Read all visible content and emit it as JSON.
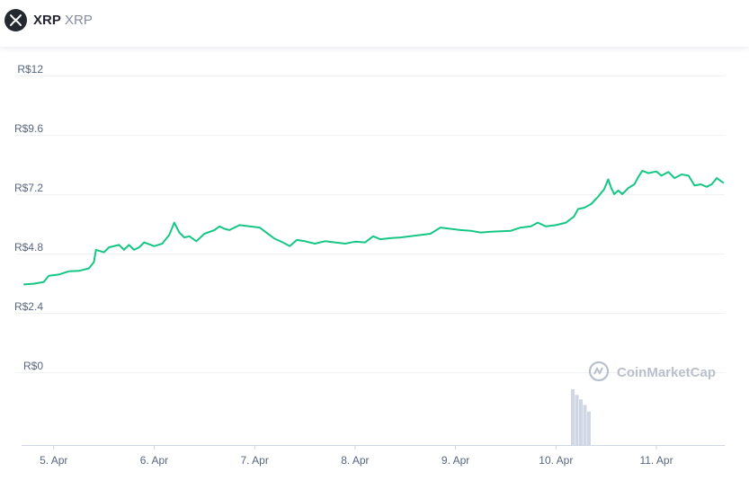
{
  "header": {
    "name": "XRP",
    "symbol": "XRP",
    "logo_icon": "xrp-logo-icon"
  },
  "watermark": {
    "text": "CoinMarketCap",
    "icon": "coinmarketcap-logo-icon"
  },
  "colors": {
    "line": "#16c784",
    "grid": "#eff2f5",
    "volume": "#cfd6e4"
  },
  "chart_data": {
    "type": "line",
    "title": "",
    "xlabel": "",
    "ylabel": "",
    "ylim": [
      0,
      12
    ],
    "grid": true,
    "y_ticks": [
      {
        "value": 12,
        "label": "R$12"
      },
      {
        "value": 9.6,
        "label": "R$9.6"
      },
      {
        "value": 7.2,
        "label": "R$7.2"
      },
      {
        "value": 4.8,
        "label": "R$4.8"
      },
      {
        "value": 2.4,
        "label": "R$2.4"
      },
      {
        "value": 0,
        "label": "R$0"
      }
    ],
    "x_ticks": [
      {
        "value": 5.3,
        "label": "5. Apr"
      },
      {
        "value": 6.3,
        "label": "6. Apr"
      },
      {
        "value": 7.3,
        "label": "7. Apr"
      },
      {
        "value": 8.3,
        "label": "8. Apr"
      },
      {
        "value": 9.3,
        "label": "9. Apr"
      },
      {
        "value": 10.3,
        "label": "10. Apr"
      },
      {
        "value": 11.3,
        "label": "11. Apr"
      }
    ],
    "xlim": [
      4.98,
      11.98
    ],
    "series": [
      {
        "values": [
          [
            5.0,
            3.55
          ],
          [
            5.1,
            3.58
          ],
          [
            5.2,
            3.65
          ],
          [
            5.25,
            3.9
          ],
          [
            5.35,
            3.95
          ],
          [
            5.45,
            4.08
          ],
          [
            5.55,
            4.1
          ],
          [
            5.65,
            4.2
          ],
          [
            5.7,
            4.45
          ],
          [
            5.72,
            4.95
          ],
          [
            5.8,
            4.85
          ],
          [
            5.85,
            5.05
          ],
          [
            5.95,
            5.15
          ],
          [
            6.0,
            4.95
          ],
          [
            6.05,
            5.15
          ],
          [
            6.1,
            4.95
          ],
          [
            6.15,
            5.05
          ],
          [
            6.2,
            5.25
          ],
          [
            6.3,
            5.1
          ],
          [
            6.38,
            5.2
          ],
          [
            6.45,
            5.55
          ],
          [
            6.5,
            6.05
          ],
          [
            6.55,
            5.65
          ],
          [
            6.6,
            5.45
          ],
          [
            6.65,
            5.5
          ],
          [
            6.72,
            5.3
          ],
          [
            6.8,
            5.6
          ],
          [
            6.9,
            5.75
          ],
          [
            6.95,
            5.9
          ],
          [
            7.0,
            5.8
          ],
          [
            7.05,
            5.75
          ],
          [
            7.15,
            5.95
          ],
          [
            7.25,
            5.9
          ],
          [
            7.35,
            5.85
          ],
          [
            7.45,
            5.55
          ],
          [
            7.5,
            5.4
          ],
          [
            7.58,
            5.25
          ],
          [
            7.65,
            5.1
          ],
          [
            7.72,
            5.35
          ],
          [
            7.8,
            5.3
          ],
          [
            7.9,
            5.2
          ],
          [
            8.0,
            5.3
          ],
          [
            8.1,
            5.25
          ],
          [
            8.2,
            5.2
          ],
          [
            8.3,
            5.28
          ],
          [
            8.4,
            5.25
          ],
          [
            8.48,
            5.5
          ],
          [
            8.55,
            5.38
          ],
          [
            8.65,
            5.42
          ],
          [
            8.75,
            5.45
          ],
          [
            8.85,
            5.5
          ],
          [
            8.95,
            5.55
          ],
          [
            9.05,
            5.6
          ],
          [
            9.15,
            5.85
          ],
          [
            9.25,
            5.8
          ],
          [
            9.35,
            5.75
          ],
          [
            9.45,
            5.72
          ],
          [
            9.55,
            5.65
          ],
          [
            9.65,
            5.68
          ],
          [
            9.75,
            5.7
          ],
          [
            9.85,
            5.72
          ],
          [
            9.95,
            5.85
          ],
          [
            10.05,
            5.9
          ],
          [
            10.12,
            6.05
          ],
          [
            10.2,
            5.9
          ],
          [
            10.3,
            5.95
          ],
          [
            10.4,
            6.05
          ],
          [
            10.48,
            6.3
          ],
          [
            10.52,
            6.6
          ],
          [
            10.58,
            6.65
          ],
          [
            10.65,
            6.8
          ],
          [
            10.72,
            7.1
          ],
          [
            10.78,
            7.4
          ],
          [
            10.82,
            7.8
          ],
          [
            10.85,
            7.45
          ],
          [
            10.88,
            7.2
          ],
          [
            10.92,
            7.35
          ],
          [
            10.96,
            7.2
          ],
          [
            11.02,
            7.45
          ],
          [
            11.08,
            7.6
          ],
          [
            11.12,
            7.9
          ],
          [
            11.16,
            8.15
          ],
          [
            11.22,
            8.05
          ],
          [
            11.3,
            8.12
          ],
          [
            11.35,
            7.95
          ],
          [
            11.42,
            8.1
          ],
          [
            11.48,
            7.85
          ],
          [
            11.55,
            8.0
          ],
          [
            11.62,
            7.95
          ],
          [
            11.68,
            7.55
          ],
          [
            11.74,
            7.6
          ],
          [
            11.8,
            7.5
          ],
          [
            11.85,
            7.6
          ],
          [
            11.9,
            7.85
          ],
          [
            11.97,
            7.65
          ]
        ]
      }
    ],
    "volume": [
      [
        10.45,
        1.0
      ],
      [
        10.49,
        0.9
      ],
      [
        10.53,
        0.82
      ],
      [
        10.57,
        0.72
      ],
      [
        10.61,
        0.6
      ]
    ]
  }
}
